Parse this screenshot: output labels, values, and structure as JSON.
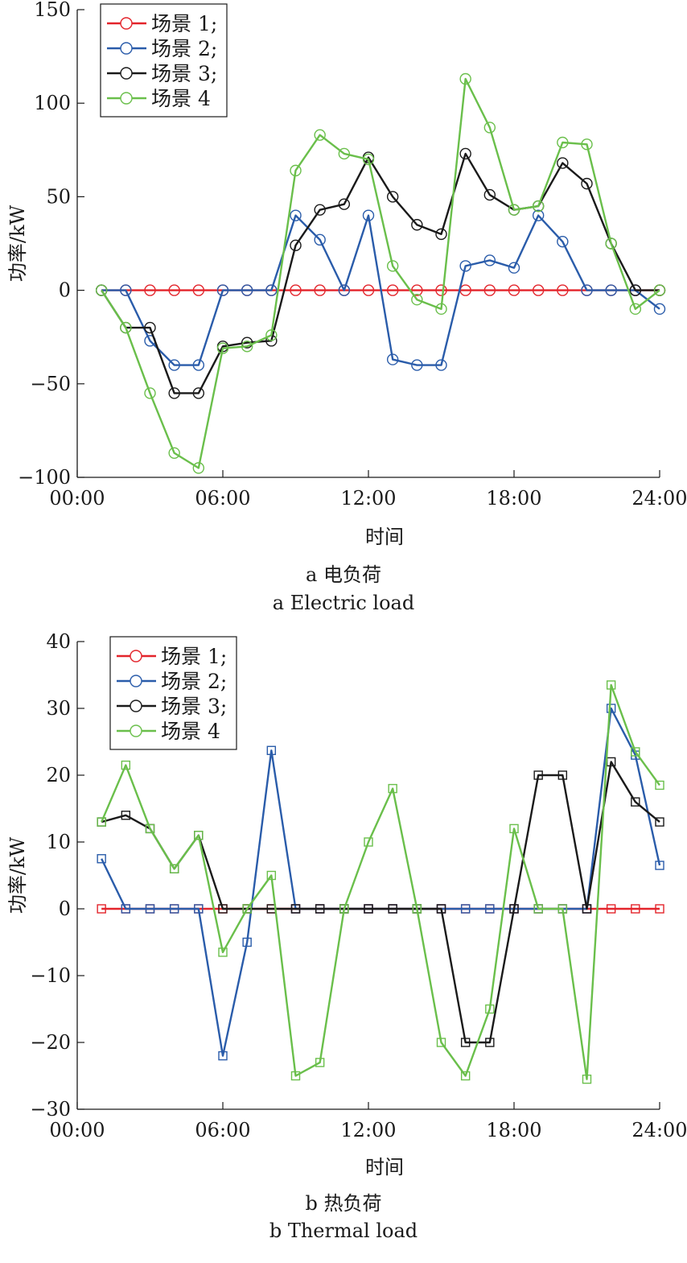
{
  "chart_data": [
    {
      "type": "line",
      "marker": "circle",
      "caption_cn": "a  电负荷",
      "caption_en": "a  Electric load",
      "xlabel": "时间",
      "ylabel": "功率/kW",
      "xlim": [
        0,
        24
      ],
      "ylim": [
        -100,
        150
      ],
      "xticks": [
        "00:00",
        "06:00",
        "12:00",
        "18:00",
        "24:00"
      ],
      "yticks": [
        -100,
        -50,
        0,
        50,
        100,
        150
      ],
      "legend_position": "top-left",
      "x": [
        1,
        2,
        3,
        4,
        5,
        6,
        7,
        8,
        9,
        10,
        11,
        12,
        13,
        14,
        15,
        16,
        17,
        18,
        19,
        20,
        21,
        22,
        23,
        24
      ],
      "series": [
        {
          "name": "场景 1;",
          "color": "#e3242b",
          "values": [
            0,
            0,
            0,
            0,
            0,
            0,
            0,
            0,
            0,
            0,
            0,
            0,
            0,
            0,
            0,
            0,
            0,
            0,
            0,
            0,
            0,
            0,
            0,
            0
          ]
        },
        {
          "name": "场景 2;",
          "color": "#2a5caa",
          "values": [
            0,
            0,
            -27,
            -40,
            -40,
            0,
            0,
            0,
            40,
            27,
            0,
            40,
            -37,
            -40,
            -40,
            13,
            16,
            12,
            40,
            26,
            0,
            0,
            0,
            -10
          ]
        },
        {
          "name": "场景 3;",
          "color": "#1a1a1a",
          "values": [
            0,
            -20,
            -20,
            -55,
            -55,
            -30,
            -28,
            -27,
            24,
            43,
            46,
            71,
            50,
            35,
            30,
            73,
            51,
            43,
            45,
            68,
            57,
            25,
            0,
            0
          ]
        },
        {
          "name": "场景 4",
          "color": "#6abf4b",
          "values": [
            0,
            -20,
            -55,
            -87,
            -95,
            -31,
            -30,
            -24,
            64,
            83,
            73,
            70,
            13,
            -5,
            -10,
            113,
            87,
            43,
            45,
            79,
            78,
            25,
            -10,
            0
          ]
        }
      ]
    },
    {
      "type": "line",
      "marker": "square",
      "caption_cn": "b  热负荷",
      "caption_en": "b  Thermal load",
      "xlabel": "时间",
      "ylabel": "功率/kW",
      "xlim": [
        0,
        24
      ],
      "ylim": [
        -30,
        40
      ],
      "xticks": [
        "00:00",
        "06:00",
        "12:00",
        "18:00",
        "24:00"
      ],
      "yticks": [
        -30,
        -20,
        -10,
        0,
        10,
        20,
        30,
        40
      ],
      "legend_position": "top-left",
      "x": [
        1,
        2,
        3,
        4,
        5,
        6,
        7,
        8,
        9,
        10,
        11,
        12,
        13,
        14,
        15,
        16,
        17,
        18,
        19,
        20,
        21,
        22,
        23,
        24
      ],
      "series": [
        {
          "name": "场景 1;",
          "color": "#e3242b",
          "values": [
            0,
            0,
            0,
            0,
            0,
            0,
            0,
            0,
            0,
            0,
            0,
            0,
            0,
            0,
            0,
            0,
            0,
            0,
            0,
            0,
            0,
            0,
            0,
            0
          ]
        },
        {
          "name": "场景 2;",
          "color": "#2a5caa",
          "values": [
            7.5,
            0,
            0,
            0,
            0,
            -22,
            -5,
            23.7,
            0,
            0,
            0,
            0,
            0,
            0,
            0,
            0,
            0,
            0,
            0,
            0,
            0,
            30,
            23,
            6.5
          ]
        },
        {
          "name": "场景 3;",
          "color": "#1a1a1a",
          "values": [
            13,
            14,
            12,
            6,
            11,
            0,
            0,
            0,
            0,
            0,
            0,
            0,
            0,
            0,
            0,
            -20,
            -20,
            0,
            20,
            20,
            0,
            22,
            16,
            13
          ]
        },
        {
          "name": "场景 4",
          "color": "#6abf4b",
          "values": [
            13,
            21.5,
            12,
            6,
            11,
            -6.5,
            0,
            5,
            -25,
            -23,
            0,
            10,
            18,
            0,
            -20,
            -25,
            -15,
            12,
            0,
            0,
            -25.5,
            33.5,
            23.5,
            18.5
          ]
        }
      ]
    }
  ]
}
